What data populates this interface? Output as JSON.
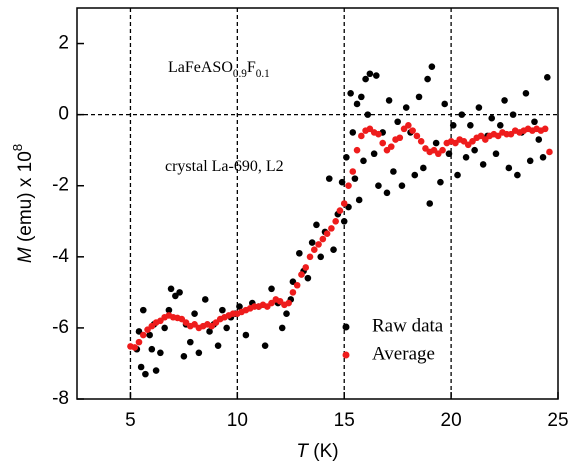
{
  "chart_data": {
    "type": "scatter",
    "x_label": [
      {
        "text": "T",
        "italic": true
      },
      {
        "text": " (K)"
      }
    ],
    "y_label": [
      {
        "text": "M",
        "italic": true
      },
      {
        "text": " (emu) x 10"
      },
      {
        "text": "8",
        "sup": true
      }
    ],
    "annotations": [
      {
        "parts": [
          {
            "text": "LaFeASO"
          },
          {
            "text": "0.9",
            "sub": true
          },
          {
            "text": "F"
          },
          {
            "text": "0.1",
            "sub": true
          }
        ]
      },
      {
        "parts": [
          {
            "text": "crystal La-690, L2"
          }
        ]
      }
    ],
    "xlim": [
      2.5,
      25
    ],
    "ylim": [
      -8,
      3
    ],
    "xticks": [
      5,
      10,
      15,
      20,
      25
    ],
    "yticks": [
      -8,
      -6,
      -4,
      -2,
      0,
      2
    ],
    "reference_lines": {
      "x": [
        5,
        10,
        15,
        20
      ],
      "y": [
        0
      ]
    },
    "legend": "lower right",
    "series": [
      {
        "name": "Raw data",
        "color": "#000000",
        "x": [
          5.3,
          5.4,
          5.5,
          5.6,
          5.7,
          5.9,
          6.0,
          6.1,
          6.2,
          6.4,
          6.6,
          6.8,
          6.9,
          7.1,
          7.3,
          7.5,
          7.6,
          7.8,
          8.0,
          8.2,
          8.5,
          8.7,
          8.9,
          9.1,
          9.3,
          9.5,
          9.7,
          9.9,
          10.1,
          10.4,
          10.7,
          11.0,
          11.3,
          11.6,
          11.9,
          12.1,
          12.3,
          12.5,
          12.6,
          12.9,
          13.1,
          13.3,
          13.5,
          13.7,
          13.9,
          14.1,
          14.3,
          14.5,
          14.7,
          14.9,
          15.0,
          15.1,
          15.2,
          15.3,
          15.4,
          15.5,
          15.6,
          15.7,
          15.8,
          15.9,
          16.0,
          16.1,
          16.2,
          16.4,
          16.5,
          16.6,
          16.8,
          17.0,
          17.1,
          17.3,
          17.5,
          17.7,
          17.9,
          18.1,
          18.3,
          18.5,
          18.7,
          18.9,
          19.0,
          19.1,
          19.3,
          19.5,
          19.7,
          19.9,
          20.1,
          20.3,
          20.5,
          20.7,
          20.9,
          21.1,
          21.3,
          21.5,
          21.7,
          21.9,
          22.1,
          22.3,
          22.5,
          22.7,
          22.9,
          23.1,
          23.3,
          23.5,
          23.7,
          23.9,
          24.1,
          24.3,
          24.5
        ],
        "values": [
          -6.6,
          -6.1,
          -7.1,
          -5.5,
          -7.3,
          -6.2,
          -6.6,
          -5.9,
          -7.2,
          -6.7,
          -6.0,
          -5.5,
          -4.9,
          -5.1,
          -5.0,
          -6.8,
          -5.9,
          -6.4,
          -5.6,
          -6.7,
          -5.2,
          -6.1,
          -5.9,
          -6.5,
          -5.5,
          -6.0,
          -5.7,
          -5.6,
          -5.4,
          -6.2,
          -5.3,
          -5.4,
          -6.5,
          -4.9,
          -5.3,
          -6.0,
          -5.6,
          -5.2,
          -4.7,
          -3.9,
          -4.4,
          -4.6,
          -3.6,
          -3.1,
          -4.0,
          -3.3,
          -1.8,
          -3.8,
          -2.8,
          -1.9,
          -3.0,
          -1.2,
          -2.6,
          0.6,
          -0.5,
          -1.8,
          0.3,
          -2.4,
          0.5,
          -1.3,
          1.0,
          0.0,
          1.15,
          -1.1,
          1.1,
          -2.0,
          -0.5,
          -2.2,
          0.4,
          -1.6,
          -0.2,
          -2.0,
          0.2,
          -0.5,
          -1.7,
          0.5,
          -1.5,
          1.0,
          -2.5,
          1.35,
          -0.8,
          -1.9,
          0.3,
          -1.1,
          -0.3,
          -1.7,
          0.0,
          -1.2,
          -0.3,
          -1.0,
          0.2,
          -1.4,
          -0.6,
          -0.1,
          -1.1,
          -0.3,
          0.4,
          -1.5,
          0.0,
          -1.7,
          -0.5,
          0.6,
          -1.3,
          -0.2,
          -0.7,
          -1.2,
          1.05
        ]
      },
      {
        "name": "Average",
        "color": "#ee1c1c",
        "x": [
          5.0,
          5.2,
          5.4,
          5.6,
          5.8,
          6.0,
          6.2,
          6.4,
          6.6,
          6.8,
          7.0,
          7.2,
          7.4,
          7.6,
          7.8,
          8.0,
          8.2,
          8.4,
          8.6,
          8.8,
          9.0,
          9.2,
          9.4,
          9.6,
          9.8,
          10.0,
          10.2,
          10.4,
          10.6,
          10.8,
          11.0,
          11.2,
          11.4,
          11.6,
          11.8,
          12.0,
          12.2,
          12.4,
          12.6,
          12.8,
          13.0,
          13.2,
          13.4,
          13.6,
          13.8,
          14.0,
          14.2,
          14.4,
          14.6,
          14.8,
          15.0,
          15.2,
          15.4,
          15.6,
          15.8,
          16.0,
          16.2,
          16.4,
          16.6,
          16.8,
          17.0,
          17.2,
          17.4,
          17.6,
          17.8,
          18.0,
          18.2,
          18.4,
          18.6,
          18.8,
          19.0,
          19.2,
          19.4,
          19.6,
          19.8,
          20.0,
          20.2,
          20.4,
          20.6,
          20.8,
          21.0,
          21.2,
          21.4,
          21.6,
          21.8,
          22.0,
          22.2,
          22.4,
          22.6,
          22.8,
          23.0,
          23.2,
          23.4,
          23.6,
          23.8,
          24.0,
          24.2,
          24.4,
          24.6
        ],
        "values": [
          -6.52,
          -6.55,
          -6.4,
          -6.2,
          -6.05,
          -5.95,
          -5.85,
          -5.8,
          -5.7,
          -5.65,
          -5.7,
          -5.72,
          -5.75,
          -5.85,
          -5.95,
          -5.9,
          -6.0,
          -5.95,
          -5.9,
          -5.95,
          -5.85,
          -5.75,
          -5.7,
          -5.65,
          -5.6,
          -5.6,
          -5.55,
          -5.5,
          -5.45,
          -5.4,
          -5.4,
          -5.35,
          -5.4,
          -5.3,
          -5.2,
          -5.25,
          -5.35,
          -5.3,
          -5.0,
          -4.8,
          -4.5,
          -4.3,
          -4.0,
          -3.8,
          -3.65,
          -3.5,
          -3.35,
          -3.2,
          -3.0,
          -2.7,
          -2.5,
          -2.0,
          -1.6,
          -1.0,
          -0.6,
          -0.45,
          -0.4,
          -0.5,
          -0.55,
          -0.8,
          -1.0,
          -0.9,
          -0.7,
          -0.65,
          -0.4,
          -0.3,
          -0.45,
          -0.6,
          -0.75,
          -0.95,
          -1.05,
          -1.0,
          -1.1,
          -1.0,
          -0.8,
          -0.75,
          -0.8,
          -0.7,
          -0.75,
          -0.85,
          -0.75,
          -0.65,
          -0.6,
          -0.7,
          -0.6,
          -0.55,
          -0.6,
          -0.5,
          -0.55,
          -0.55,
          -0.45,
          -0.5,
          -0.45,
          -0.4,
          -0.45,
          -0.4,
          -0.45,
          -0.4,
          -1.05
        ]
      }
    ]
  }
}
